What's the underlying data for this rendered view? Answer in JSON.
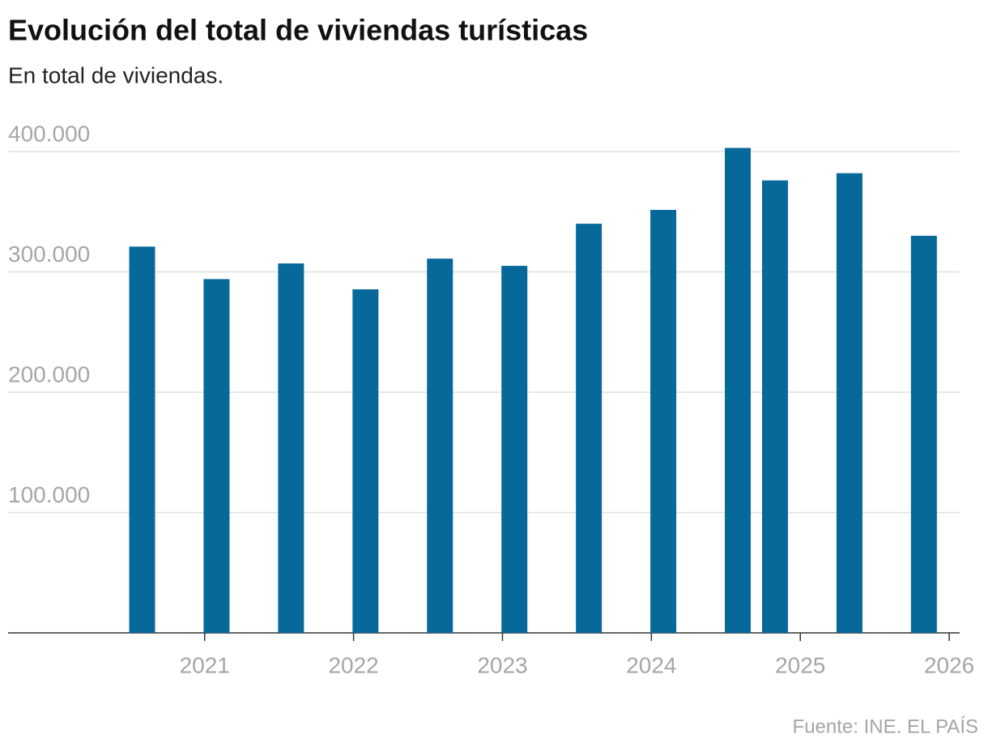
{
  "chart_data": {
    "type": "bar",
    "title": "Evolución del total de viviendas turísticas",
    "subtitle": "En total de viviendas.",
    "source": "Fuente: INE. EL PAÍS",
    "x": [
      2020.58,
      2021.08,
      2021.58,
      2022.08,
      2022.58,
      2023.08,
      2023.58,
      2024.08,
      2024.58,
      2024.83,
      2025.33,
      2025.83
    ],
    "values": [
      321000,
      294000,
      307000,
      285500,
      311000,
      305000,
      340000,
      351500,
      403000,
      376000,
      382000,
      330000
    ],
    "color": "#06699a",
    "xlim": [
      2019.68,
      2026.07
    ],
    "xticks": [
      2021,
      2022,
      2023,
      2024,
      2025,
      2026
    ],
    "ylim": [
      0,
      410000
    ],
    "yticks": [
      {
        "value": 100000,
        "label": "100.000"
      },
      {
        "value": 200000,
        "label": "200.000"
      },
      {
        "value": 300000,
        "label": "300.000"
      },
      {
        "value": 400000,
        "label": "400.000"
      }
    ],
    "grid": true
  }
}
